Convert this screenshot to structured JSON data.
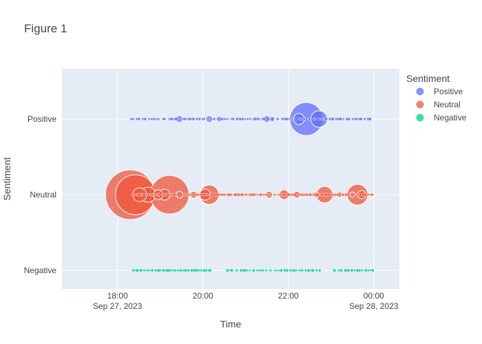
{
  "figure": {
    "title": "Figure 1"
  },
  "chart_data": {
    "type": "scatter",
    "title": "Figure 1",
    "xlabel": "Time",
    "ylabel": "Sentiment",
    "grid": true,
    "legend": {
      "title": "Sentiment",
      "position": "right"
    },
    "categories": [
      "Positive",
      "Neutral",
      "Negative"
    ],
    "x_ticks": [
      {
        "hour": 18,
        "label": [
          "18:00",
          "Sep 27, 2023"
        ]
      },
      {
        "hour": 20,
        "label": [
          "20:00",
          ""
        ]
      },
      {
        "hour": 22,
        "label": [
          "22:00",
          ""
        ]
      },
      {
        "hour": 24,
        "label": [
          "00:00",
          "Sep 28, 2023"
        ]
      }
    ],
    "x_range_hours": [
      16.7,
      24.6
    ],
    "colors": {
      "Positive": "#636efa",
      "Neutral": "#ef553b",
      "Negative": "#00cc96"
    },
    "series": [
      {
        "name": "Positive",
        "category": "Positive",
        "large": [
          [
            18.85,
            3
          ],
          [
            19.1,
            3
          ],
          [
            19.28,
            3
          ],
          [
            19.45,
            5
          ],
          [
            19.6,
            2
          ],
          [
            19.9,
            3
          ],
          [
            20.15,
            5
          ],
          [
            20.38,
            4
          ],
          [
            21.3,
            3
          ],
          [
            21.5,
            5
          ],
          [
            21.62,
            4
          ],
          [
            21.75,
            3
          ],
          [
            22.25,
            8
          ],
          [
            22.42,
            24
          ],
          [
            22.72,
            12
          ],
          [
            23.2,
            3
          ],
          [
            23.4,
            3
          ],
          [
            23.7,
            3
          ],
          [
            23.93,
            2
          ]
        ],
        "small_ranges": [
          [
            18.3,
            23.95,
            85
          ]
        ]
      },
      {
        "name": "Neutral",
        "category": "Neutral",
        "large": [
          [
            18.3,
            36
          ],
          [
            18.42,
            29
          ],
          [
            18.52,
            10
          ],
          [
            18.72,
            11
          ],
          [
            18.95,
            7
          ],
          [
            19.1,
            8
          ],
          [
            19.22,
            28
          ],
          [
            19.45,
            5
          ],
          [
            19.78,
            5
          ],
          [
            20.05,
            8
          ],
          [
            20.15,
            14
          ],
          [
            20.45,
            3
          ],
          [
            21.0,
            3
          ],
          [
            21.2,
            2
          ],
          [
            21.55,
            5
          ],
          [
            21.9,
            7
          ],
          [
            22.2,
            5
          ],
          [
            22.35,
            3
          ],
          [
            22.65,
            4
          ],
          [
            22.85,
            12
          ],
          [
            23.2,
            4
          ],
          [
            23.5,
            4
          ],
          [
            23.62,
            15
          ],
          [
            23.72,
            6
          ],
          [
            23.95,
            3
          ]
        ],
        "small_ranges": [
          [
            18.35,
            24.0,
            110
          ]
        ]
      },
      {
        "name": "Negative",
        "category": "Negative",
        "large": [
          [
            23.62,
            3
          ],
          [
            23.92,
            2
          ],
          [
            23.98,
            2
          ]
        ],
        "small_ranges": [
          [
            18.35,
            20.2,
            48
          ],
          [
            20.55,
            22.75,
            36
          ],
          [
            23.05,
            24.0,
            12
          ]
        ]
      }
    ]
  }
}
